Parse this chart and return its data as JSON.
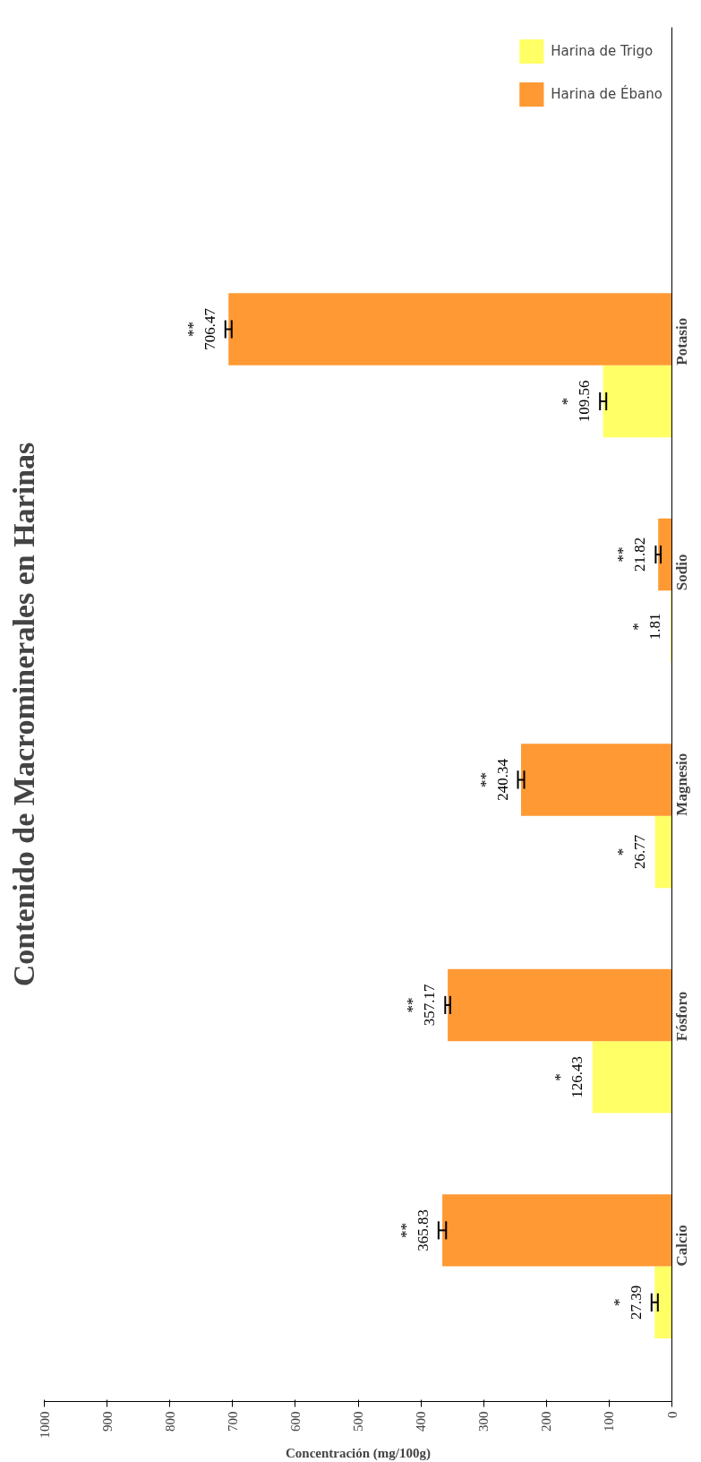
{
  "chart_data": {
    "type": "bar",
    "orientation": "horizontal",
    "title": "Contenido de Macrominerales en Harinas",
    "xlabel": "Concentración (mg/100g)",
    "categories": [
      "Potasio",
      "Sodio",
      "Magnesio",
      "Fósforo",
      "Calcio"
    ],
    "series": [
      {
        "name": "Harina de Trigo",
        "color": "#ffff66",
        "values": [
          109.56,
          1.81,
          26.77,
          126.43,
          27.39
        ],
        "errors": [
          5,
          null,
          null,
          null,
          5
        ],
        "value_labels": [
          "*\n109.56",
          "*\n1.81",
          "*\n26.77",
          "*\n126.43",
          "*\n27.39"
        ]
      },
      {
        "name": "Harina de Ébano",
        "color": "#ff9933",
        "values": [
          706.47,
          21.82,
          240.34,
          357.17,
          365.83
        ],
        "errors": [
          5,
          4,
          5,
          4,
          6
        ],
        "value_labels": [
          "**\n706.47",
          "**\n21.82",
          "**\n240.34",
          "**\n357.17",
          "**\n365.83"
        ]
      }
    ],
    "xlim": [
      1000,
      0
    ],
    "xticks": [
      0,
      100,
      200,
      300,
      400,
      500,
      600,
      700,
      800,
      900,
      1000
    ],
    "grid": false,
    "legend": "top right"
  }
}
